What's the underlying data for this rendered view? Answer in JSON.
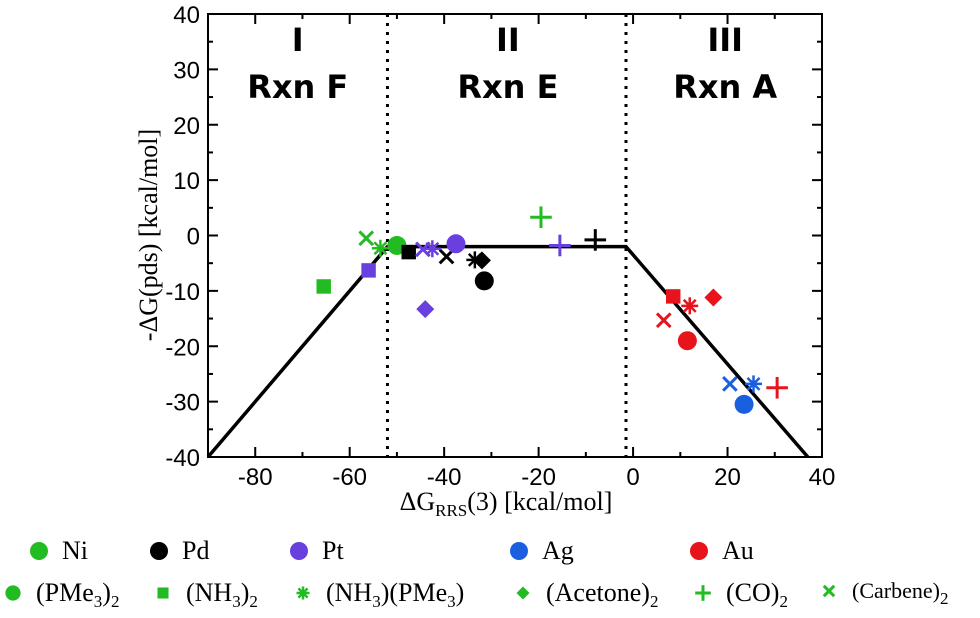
{
  "chart_data": {
    "type": "scatter",
    "xlabel_main": "ΔG",
    "xlabel_sub": "RRS",
    "xlabel_rest": "(3) [kcal/mol]",
    "ylabel": "-ΔG(pds) [kcal/mol]",
    "xlim": [
      -90,
      40
    ],
    "ylim": [
      -40,
      40
    ],
    "xticks": [
      "-80",
      "-60",
      "-40",
      "-20",
      "0",
      "20",
      "40"
    ],
    "xtick_values": [
      -80,
      -60,
      -40,
      -20,
      0,
      20,
      40
    ],
    "yticks": [
      "40",
      "30",
      "20",
      "10",
      "0",
      "-10",
      "-20",
      "-30",
      "-40"
    ],
    "ytick_values": [
      40,
      30,
      20,
      10,
      0,
      -10,
      -20,
      -30,
      -40
    ],
    "region_boundaries": [
      -52,
      -1.5
    ],
    "regions": [
      {
        "roman": "I",
        "rxn": "Rxn F",
        "x_center": -71
      },
      {
        "roman": "II",
        "rxn": "Rxn E",
        "x_center": -26.5
      },
      {
        "roman": "III",
        "rxn": "Rxn A",
        "x_center": 19.5
      }
    ],
    "volcano_line": [
      [
        -90,
        -40
      ],
      [
        -52,
        -2
      ],
      [
        -1.5,
        -2
      ],
      [
        37,
        -40
      ]
    ],
    "colors": {
      "Ni": "#22bb22",
      "Pd": "#000000",
      "Pt": "#6a3fe0",
      "Ag": "#1a5fe0",
      "Au": "#e8141c"
    },
    "points": [
      {
        "metal": "Ni",
        "ligand": "PMe3",
        "x": -50,
        "y": -1.8
      },
      {
        "metal": "Ni",
        "ligand": "NH3",
        "x": -65.5,
        "y": -9.2
      },
      {
        "metal": "Ni",
        "ligand": "NH3PMe3",
        "x": -53.5,
        "y": -2.3
      },
      {
        "metal": "Ni",
        "ligand": "CO",
        "x": -19.5,
        "y": 3.3
      },
      {
        "metal": "Ni",
        "ligand": "Carbene",
        "x": -56.5,
        "y": -0.5
      },
      {
        "metal": "Pd",
        "ligand": "PMe3",
        "x": -31.5,
        "y": -8.2
      },
      {
        "metal": "Pd",
        "ligand": "NH3",
        "x": -47.5,
        "y": -3
      },
      {
        "metal": "Pd",
        "ligand": "NH3PMe3",
        "x": -33.5,
        "y": -4.4
      },
      {
        "metal": "Pd",
        "ligand": "Acetone",
        "x": -32,
        "y": -4.5
      },
      {
        "metal": "Pd",
        "ligand": "CO",
        "x": -8,
        "y": -0.8
      },
      {
        "metal": "Pd",
        "ligand": "Carbene",
        "x": -39.5,
        "y": -3.8
      },
      {
        "metal": "Pt",
        "ligand": "PMe3",
        "x": -37.5,
        "y": -1.5
      },
      {
        "metal": "Pt",
        "ligand": "NH3",
        "x": -56,
        "y": -6.3
      },
      {
        "metal": "Pt",
        "ligand": "NH3PMe3",
        "x": -42.5,
        "y": -2.4
      },
      {
        "metal": "Pt",
        "ligand": "Acetone",
        "x": -44,
        "y": -13.3
      },
      {
        "metal": "Pt",
        "ligand": "CO",
        "x": -15.5,
        "y": -1.8
      },
      {
        "metal": "Pt",
        "ligand": "Carbene",
        "x": -44.5,
        "y": -2.5
      },
      {
        "metal": "Ag",
        "ligand": "PMe3",
        "x": 23.5,
        "y": -30.5
      },
      {
        "metal": "Ag",
        "ligand": "NH3PMe3",
        "x": 25.5,
        "y": -26.8
      },
      {
        "metal": "Ag",
        "ligand": "Carbene",
        "x": 20.5,
        "y": -26.8
      },
      {
        "metal": "Au",
        "ligand": "PMe3",
        "x": 11.5,
        "y": -19
      },
      {
        "metal": "Au",
        "ligand": "NH3",
        "x": 8.5,
        "y": -11
      },
      {
        "metal": "Au",
        "ligand": "NH3PMe3",
        "x": 12,
        "y": -12.7
      },
      {
        "metal": "Au",
        "ligand": "Acetone",
        "x": 17,
        "y": -11.2
      },
      {
        "metal": "Au",
        "ligand": "CO",
        "x": 30.5,
        "y": -27.5
      },
      {
        "metal": "Au",
        "ligand": "Carbene",
        "x": 6.5,
        "y": -15.3
      }
    ]
  },
  "legend": {
    "metals": [
      {
        "label": "Ni",
        "color": "#22bb22"
      },
      {
        "label": "Pd",
        "color": "#000000"
      },
      {
        "label": "Pt",
        "color": "#6a3fe0"
      },
      {
        "label": "Ag",
        "color": "#1a5fe0"
      },
      {
        "label": "Au",
        "color": "#e8141c"
      }
    ],
    "ligands": [
      {
        "marker": "circle",
        "main": "(PMe",
        "sub1": "3",
        "tail": ")",
        "sub2": "2"
      },
      {
        "marker": "square",
        "main": "(NH",
        "sub1": "3",
        "tail": ")",
        "sub2": "2"
      },
      {
        "marker": "star",
        "main": "(NH",
        "sub1": "3",
        "mid": ")(PMe",
        "sub3": "3",
        "tail": ")"
      },
      {
        "marker": "diamond",
        "main": "(Acetone)",
        "sub2": "2"
      },
      {
        "marker": "plus",
        "main": "(CO)",
        "sub2": "2"
      },
      {
        "marker": "cross",
        "main": "(Carbene)",
        "sub2": "2"
      }
    ],
    "ligand_marker_color": "#22bb22"
  }
}
